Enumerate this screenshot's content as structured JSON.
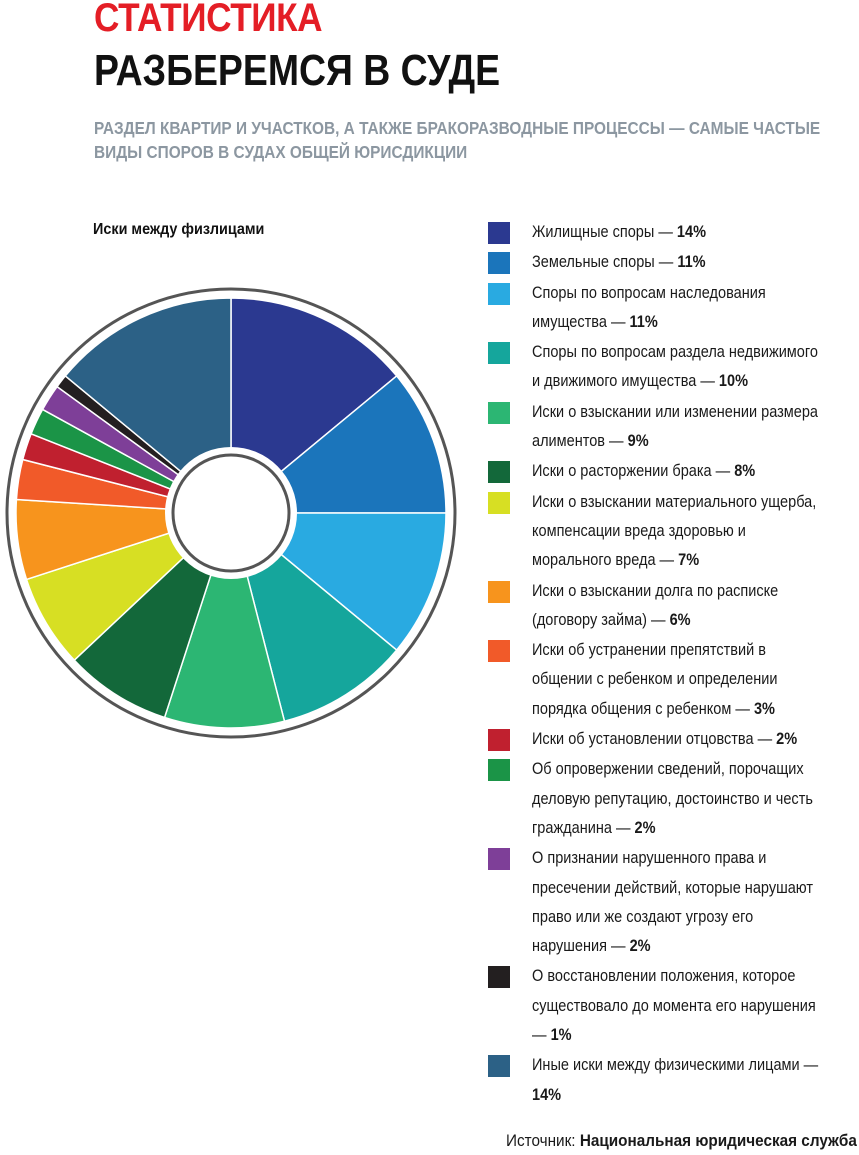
{
  "chart_data": {
    "type": "pie",
    "kicker": "СТАТИСТИКА",
    "title": "РАЗБЕРЕМСЯ В СУДЕ",
    "subtitle": "РАЗДЕЛ КВАРТИР И УЧАСТКОВ, А ТАКЖЕ БРАКОРАЗВОДНЫЕ ПРОЦЕССЫ — САМЫЕ ЧАСТЫЕ ВИДЫ СПОРОВ В СУДАХ ОБЩЕЙ ЮРИСДИКЦИИ",
    "chart_title": "Иски между физлицами",
    "categories": [
      "Жилищные споры —",
      "Земельные споры —",
      "Споры по вопросам наследования имущества —",
      "Споры по вопросам раздела недвижимого и движимого имущества —",
      "Иски о взыскании или изменении размера алиментов —",
      "Иски о расторжении брака —",
      "Иски о взыскании материального ущерба, компенсации вреда здоровью и морального вреда —",
      "Иски о взыскании долга по расписке (договору займа) —",
      "Иски об устранении препятствий в общении с ребенком и определении порядка общения с ребенком —",
      "Иски об установлении отцовства —",
      "Об опровержении сведений, порочащих деловую репутацию, достоинство и честь гражданина —",
      "О признании нарушенного права и пресечении действий, которые нарушают право или же создают угрозу его нарушения —",
      "О восстановлении положения, которое существовало до момента его нарушения —",
      "Иные иски между физическими лицами —"
    ],
    "values": [
      14,
      11,
      11,
      10,
      9,
      8,
      7,
      6,
      3,
      2,
      2,
      2,
      1,
      14
    ],
    "value_labels": [
      "14%",
      "11%",
      "11%",
      "10%",
      "9%",
      "8%",
      "7%",
      "6%",
      "3%",
      "2%",
      "2%",
      "2%",
      "1%",
      "14%"
    ],
    "colors": [
      "#2b3990",
      "#1b75bb",
      "#29aae1",
      "#15a69c",
      "#2cb673",
      "#13683a",
      "#d7df23",
      "#f7941d",
      "#f15a29",
      "#c0202f",
      "#1b9447",
      "#7e3f98",
      "#231f20",
      "#2c6186"
    ],
    "source_label": "Источник:",
    "source": "Национальная юридическая служба"
  }
}
